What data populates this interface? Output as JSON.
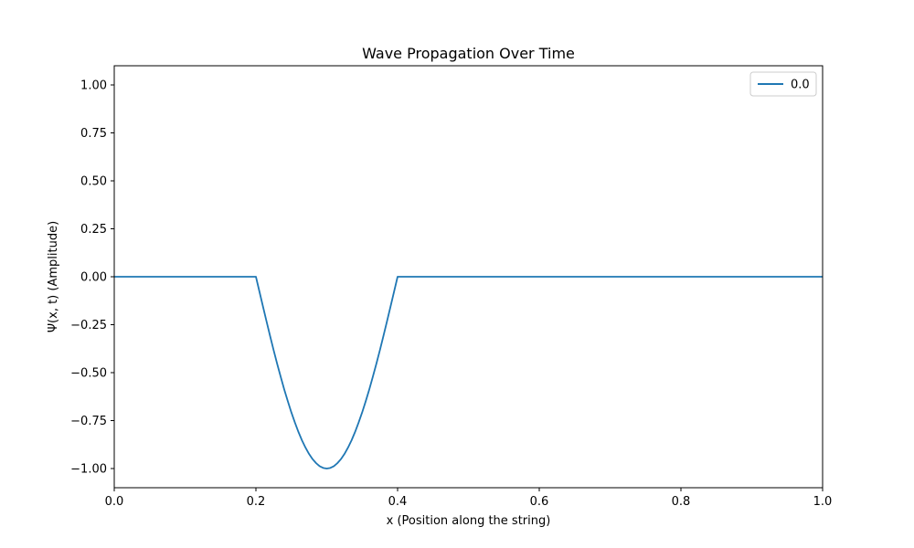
{
  "chart_data": {
    "type": "line",
    "title": "Wave Propagation Over Time",
    "xlabel": "x (Position along the string)",
    "ylabel": "Ψ(x, t) (Amplitude)",
    "xlim": [
      0,
      1
    ],
    "ylim": [
      -1.1,
      1.1
    ],
    "x_ticks": [
      {
        "value": 0.0,
        "label": "0.0"
      },
      {
        "value": 0.2,
        "label": "0.2"
      },
      {
        "value": 0.4,
        "label": "0.4"
      },
      {
        "value": 0.6,
        "label": "0.6"
      },
      {
        "value": 0.8,
        "label": "0.8"
      },
      {
        "value": 1.0,
        "label": "1.0"
      }
    ],
    "y_ticks": [
      {
        "value": 1.0,
        "label": "1.00"
      },
      {
        "value": 0.75,
        "label": "0.75"
      },
      {
        "value": 0.5,
        "label": "0.50"
      },
      {
        "value": 0.25,
        "label": "0.25"
      },
      {
        "value": 0.0,
        "label": "0.00"
      },
      {
        "value": -0.25,
        "label": "−0.25"
      },
      {
        "value": -0.5,
        "label": "−0.50"
      },
      {
        "value": -0.75,
        "label": "−0.75"
      },
      {
        "value": -1.0,
        "label": "−1.00"
      }
    ],
    "grid": false,
    "legend_position": "top-right",
    "series": [
      {
        "name": "0.0",
        "color": "#1f77b4",
        "x": [
          0.0,
          0.2,
          0.205,
          0.21,
          0.215,
          0.22,
          0.225,
          0.23,
          0.235,
          0.24,
          0.245,
          0.25,
          0.255,
          0.26,
          0.265,
          0.27,
          0.275,
          0.28,
          0.285,
          0.29,
          0.295,
          0.3,
          0.305,
          0.31,
          0.315,
          0.32,
          0.325,
          0.33,
          0.335,
          0.34,
          0.345,
          0.35,
          0.355,
          0.36,
          0.365,
          0.37,
          0.375,
          0.38,
          0.385,
          0.39,
          0.395,
          0.4,
          1.0
        ],
        "y": [
          0.0,
          0.0,
          -0.078,
          -0.156,
          -0.233,
          -0.309,
          -0.383,
          -0.454,
          -0.522,
          -0.588,
          -0.649,
          -0.707,
          -0.76,
          -0.809,
          -0.853,
          -0.891,
          -0.924,
          -0.951,
          -0.972,
          -0.988,
          -0.997,
          -1.0,
          -0.997,
          -0.988,
          -0.972,
          -0.951,
          -0.924,
          -0.891,
          -0.853,
          -0.809,
          -0.76,
          -0.707,
          -0.649,
          -0.588,
          -0.522,
          -0.454,
          -0.383,
          -0.309,
          -0.233,
          -0.156,
          -0.078,
          0.0,
          0.0
        ]
      }
    ]
  }
}
